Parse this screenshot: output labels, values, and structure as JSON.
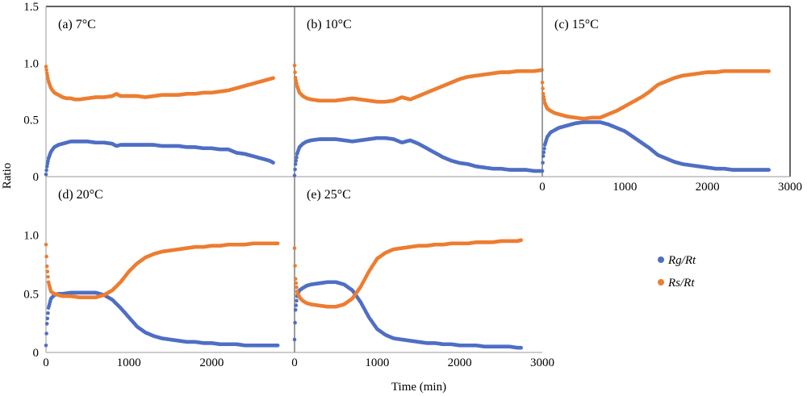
{
  "figure": {
    "xlabel": "Time (min)",
    "ylabel": "Ratio"
  },
  "legend": {
    "items": [
      {
        "label": "Rg/Rt",
        "color": "#4f6fc4",
        "marker": "circle"
      },
      {
        "label": "Rs/Rt",
        "color": "#ed7d31",
        "marker": "circle"
      }
    ]
  },
  "chart_data": [
    {
      "type": "scatter",
      "panel_label": "(a) 7°C",
      "xlim": [
        0,
        3000
      ],
      "ylim": [
        0,
        1.5
      ],
      "yticks": [
        "0",
        "0.5",
        "1.0",
        "1.5"
      ],
      "xticks": [],
      "series": [
        {
          "name": "Rg/Rt",
          "x": [
            0,
            10,
            30,
            60,
            100,
            150,
            200,
            250,
            300,
            350,
            400,
            500,
            600,
            700,
            800,
            850,
            900,
            1000,
            1100,
            1200,
            1300,
            1400,
            1500,
            1600,
            1700,
            1800,
            1900,
            2000,
            2100,
            2200,
            2300,
            2400,
            2500,
            2600,
            2700,
            2750
          ],
          "y": [
            0.02,
            0.08,
            0.16,
            0.22,
            0.26,
            0.28,
            0.29,
            0.3,
            0.31,
            0.31,
            0.31,
            0.31,
            0.3,
            0.3,
            0.29,
            0.27,
            0.28,
            0.28,
            0.28,
            0.28,
            0.28,
            0.27,
            0.27,
            0.27,
            0.26,
            0.26,
            0.25,
            0.25,
            0.24,
            0.24,
            0.21,
            0.2,
            0.18,
            0.16,
            0.14,
            0.12
          ]
        },
        {
          "name": "Rs/Rt",
          "x": [
            0,
            10,
            30,
            60,
            100,
            150,
            200,
            250,
            300,
            350,
            400,
            500,
            600,
            700,
            800,
            850,
            900,
            1000,
            1100,
            1200,
            1300,
            1400,
            1500,
            1600,
            1700,
            1800,
            1900,
            2000,
            2100,
            2200,
            2300,
            2400,
            2500,
            2600,
            2700,
            2750
          ],
          "y": [
            0.97,
            0.92,
            0.84,
            0.78,
            0.74,
            0.72,
            0.7,
            0.69,
            0.69,
            0.68,
            0.68,
            0.69,
            0.7,
            0.7,
            0.71,
            0.73,
            0.71,
            0.71,
            0.71,
            0.7,
            0.71,
            0.72,
            0.72,
            0.72,
            0.73,
            0.73,
            0.74,
            0.74,
            0.75,
            0.76,
            0.78,
            0.8,
            0.82,
            0.84,
            0.86,
            0.87
          ]
        }
      ]
    },
    {
      "type": "scatter",
      "panel_label": "(b) 10°C",
      "xlim": [
        0,
        3000
      ],
      "ylim": [
        0,
        1.5
      ],
      "yticks": [],
      "xticks": [],
      "series": [
        {
          "name": "Rg/Rt",
          "x": [
            0,
            10,
            30,
            60,
            100,
            150,
            200,
            300,
            400,
            500,
            600,
            700,
            800,
            900,
            1000,
            1100,
            1200,
            1300,
            1400,
            1500,
            1600,
            1700,
            1800,
            1900,
            2000,
            2100,
            2200,
            2300,
            2400,
            2500,
            2600,
            2700,
            2800,
            2900,
            3000
          ],
          "y": [
            0.01,
            0.1,
            0.2,
            0.26,
            0.29,
            0.31,
            0.32,
            0.33,
            0.33,
            0.33,
            0.32,
            0.31,
            0.32,
            0.33,
            0.34,
            0.34,
            0.33,
            0.3,
            0.32,
            0.29,
            0.25,
            0.21,
            0.17,
            0.14,
            0.12,
            0.11,
            0.09,
            0.08,
            0.07,
            0.07,
            0.06,
            0.06,
            0.06,
            0.05,
            0.05
          ]
        },
        {
          "name": "Rs/Rt",
          "x": [
            0,
            10,
            30,
            60,
            100,
            150,
            200,
            300,
            400,
            500,
            600,
            700,
            800,
            900,
            1000,
            1100,
            1200,
            1300,
            1400,
            1500,
            1600,
            1700,
            1800,
            1900,
            2000,
            2100,
            2200,
            2300,
            2400,
            2500,
            2600,
            2700,
            2800,
            2900,
            3000
          ],
          "y": [
            0.98,
            0.88,
            0.8,
            0.74,
            0.71,
            0.69,
            0.68,
            0.67,
            0.67,
            0.67,
            0.68,
            0.69,
            0.68,
            0.67,
            0.66,
            0.66,
            0.67,
            0.7,
            0.68,
            0.71,
            0.74,
            0.77,
            0.8,
            0.83,
            0.86,
            0.88,
            0.89,
            0.9,
            0.91,
            0.92,
            0.92,
            0.93,
            0.93,
            0.93,
            0.94
          ]
        }
      ]
    },
    {
      "type": "scatter",
      "panel_label": "(c) 15°C",
      "xlim": [
        0,
        3000
      ],
      "ylim": [
        0,
        1.5
      ],
      "yticks": [],
      "xticks": [
        "0",
        "1000",
        "2000",
        "3000"
      ],
      "series": [
        {
          "name": "Rg/Rt",
          "x": [
            0,
            10,
            30,
            60,
            100,
            150,
            200,
            300,
            400,
            500,
            600,
            700,
            800,
            900,
            1000,
            1100,
            1200,
            1300,
            1400,
            1500,
            1600,
            1700,
            1800,
            1900,
            2000,
            2100,
            2200,
            2300,
            2400,
            2500,
            2600,
            2700,
            2750
          ],
          "y": [
            0.05,
            0.17,
            0.28,
            0.35,
            0.39,
            0.41,
            0.43,
            0.45,
            0.47,
            0.48,
            0.48,
            0.48,
            0.46,
            0.43,
            0.4,
            0.35,
            0.3,
            0.25,
            0.19,
            0.16,
            0.13,
            0.11,
            0.1,
            0.09,
            0.08,
            0.07,
            0.07,
            0.06,
            0.06,
            0.06,
            0.06,
            0.06,
            0.06
          ]
        },
        {
          "name": "Rs/Rt",
          "x": [
            0,
            10,
            30,
            60,
            100,
            150,
            200,
            300,
            400,
            500,
            600,
            700,
            800,
            900,
            1000,
            1100,
            1200,
            1300,
            1400,
            1500,
            1600,
            1700,
            1800,
            1900,
            2000,
            2100,
            2200,
            2300,
            2400,
            2500,
            2600,
            2700,
            2750
          ],
          "y": [
            0.83,
            0.74,
            0.65,
            0.6,
            0.58,
            0.56,
            0.55,
            0.53,
            0.52,
            0.51,
            0.52,
            0.52,
            0.55,
            0.58,
            0.62,
            0.66,
            0.7,
            0.75,
            0.81,
            0.84,
            0.87,
            0.89,
            0.9,
            0.91,
            0.92,
            0.92,
            0.93,
            0.93,
            0.93,
            0.93,
            0.93,
            0.93,
            0.93
          ]
        }
      ]
    },
    {
      "type": "scatter",
      "panel_label": "(d) 20°C",
      "xlim": [
        0,
        3000
      ],
      "ylim": [
        0,
        1.5
      ],
      "yticks": [
        "0",
        "0.5",
        "1.0"
      ],
      "xticks": [
        "0",
        "1000",
        "2000"
      ],
      "series": [
        {
          "name": "Rg/Rt",
          "x": [
            0,
            10,
            30,
            60,
            100,
            150,
            200,
            300,
            400,
            500,
            600,
            700,
            800,
            900,
            1000,
            1100,
            1200,
            1300,
            1400,
            1500,
            1600,
            1700,
            1800,
            1900,
            2000,
            2100,
            2200,
            2300,
            2400,
            2500,
            2600,
            2700,
            2800
          ],
          "y": [
            0.06,
            0.23,
            0.38,
            0.46,
            0.49,
            0.5,
            0.5,
            0.51,
            0.51,
            0.51,
            0.51,
            0.49,
            0.45,
            0.38,
            0.3,
            0.22,
            0.17,
            0.14,
            0.12,
            0.11,
            0.1,
            0.09,
            0.09,
            0.08,
            0.08,
            0.07,
            0.07,
            0.07,
            0.06,
            0.06,
            0.06,
            0.06,
            0.06
          ]
        },
        {
          "name": "Rs/Rt",
          "x": [
            0,
            10,
            30,
            60,
            100,
            150,
            200,
            300,
            400,
            500,
            600,
            700,
            800,
            900,
            1000,
            1100,
            1200,
            1300,
            1400,
            1500,
            1600,
            1700,
            1800,
            1900,
            2000,
            2100,
            2200,
            2300,
            2400,
            2500,
            2600,
            2700,
            2800
          ],
          "y": [
            0.92,
            0.75,
            0.6,
            0.52,
            0.5,
            0.49,
            0.48,
            0.48,
            0.47,
            0.47,
            0.47,
            0.49,
            0.53,
            0.6,
            0.69,
            0.76,
            0.81,
            0.84,
            0.86,
            0.87,
            0.88,
            0.89,
            0.9,
            0.9,
            0.91,
            0.91,
            0.92,
            0.92,
            0.92,
            0.93,
            0.93,
            0.93,
            0.93
          ]
        }
      ]
    },
    {
      "type": "scatter",
      "panel_label": "(e) 25°C",
      "xlim": [
        0,
        3000
      ],
      "ylim": [
        0,
        1.5
      ],
      "yticks": [],
      "xticks": [
        "0",
        "1000",
        "2000",
        "3000"
      ],
      "series": [
        {
          "name": "Rg/Rt",
          "x": [
            0,
            10,
            30,
            60,
            100,
            150,
            200,
            300,
            400,
            500,
            600,
            700,
            800,
            900,
            1000,
            1100,
            1200,
            1300,
            1400,
            1500,
            1600,
            1700,
            1800,
            1900,
            2000,
            2100,
            2200,
            2300,
            2400,
            2500,
            2600,
            2700,
            2750
          ],
          "y": [
            0.11,
            0.35,
            0.48,
            0.53,
            0.55,
            0.57,
            0.58,
            0.59,
            0.6,
            0.6,
            0.58,
            0.53,
            0.43,
            0.3,
            0.2,
            0.15,
            0.12,
            0.11,
            0.1,
            0.09,
            0.08,
            0.08,
            0.07,
            0.07,
            0.06,
            0.06,
            0.06,
            0.05,
            0.05,
            0.05,
            0.05,
            0.04,
            0.04
          ]
        },
        {
          "name": "Rs/Rt",
          "x": [
            0,
            10,
            30,
            60,
            100,
            150,
            200,
            300,
            400,
            500,
            600,
            700,
            800,
            900,
            1000,
            1100,
            1200,
            1300,
            1400,
            1500,
            1600,
            1700,
            1800,
            1900,
            2000,
            2100,
            2200,
            2300,
            2400,
            2500,
            2600,
            2700,
            2750
          ],
          "y": [
            0.89,
            0.64,
            0.52,
            0.47,
            0.44,
            0.42,
            0.41,
            0.4,
            0.39,
            0.39,
            0.41,
            0.46,
            0.56,
            0.69,
            0.8,
            0.85,
            0.88,
            0.89,
            0.9,
            0.91,
            0.91,
            0.92,
            0.92,
            0.93,
            0.93,
            0.93,
            0.94,
            0.94,
            0.94,
            0.95,
            0.95,
            0.95,
            0.96
          ]
        }
      ]
    }
  ]
}
